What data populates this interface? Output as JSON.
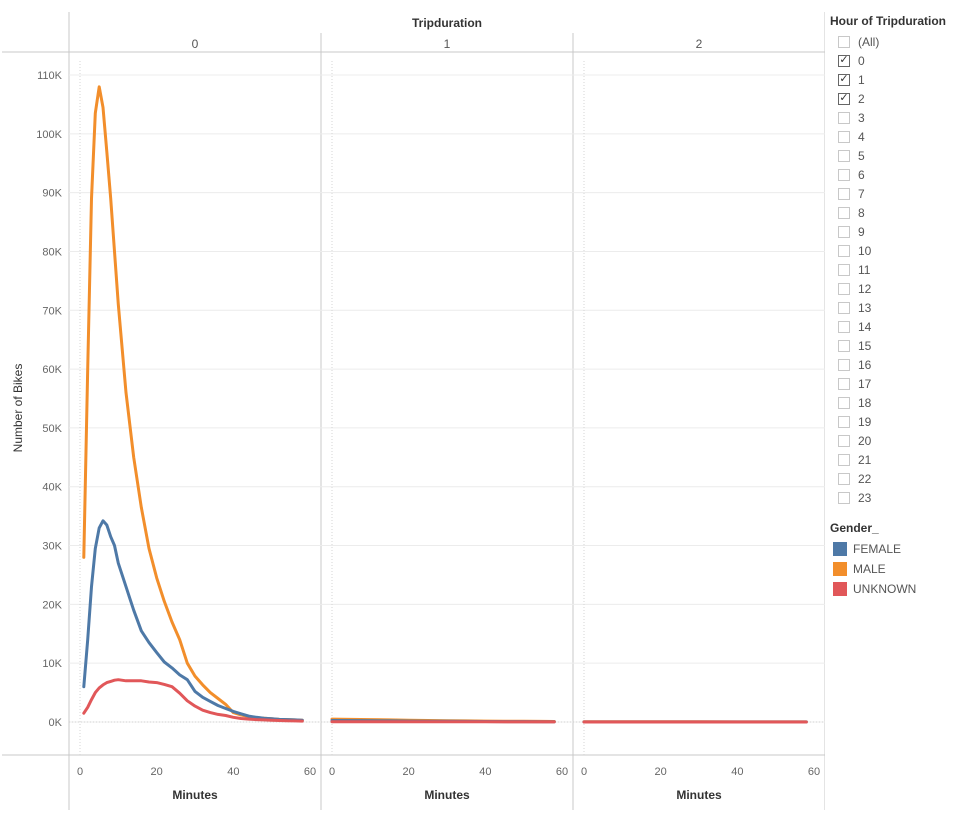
{
  "chart_data": {
    "type": "line",
    "title": "Tripduration",
    "panels": [
      "0",
      "1",
      "2"
    ],
    "xlabel": "Minutes",
    "ylabel": "Number of Bikes",
    "xlim": [
      0,
      60
    ],
    "xticks": [
      0,
      20,
      40,
      60
    ],
    "ylim": [
      0,
      113000
    ],
    "yticks": [
      0,
      10000,
      20000,
      30000,
      40000,
      50000,
      60000,
      70000,
      80000,
      90000,
      100000,
      110000
    ],
    "ytick_labels": [
      "0K",
      "10K",
      "20K",
      "30K",
      "40K",
      "50K",
      "60K",
      "70K",
      "80K",
      "90K",
      "100K",
      "110K"
    ],
    "grid": true,
    "legend": "right",
    "series": [
      {
        "name": "FEMALE",
        "color": "#4e79a7",
        "panels": [
          {
            "x": [
              1,
              2,
              3,
              4,
              5,
              6,
              7,
              8,
              9,
              10,
              12,
              14,
              16,
              18,
              20,
              22,
              24,
              26,
              28,
              30,
              32,
              34,
              36,
              38,
              40,
              42,
              44,
              46,
              48,
              50,
              52,
              54,
              56,
              58
            ],
            "y": [
              6000,
              14000,
              23000,
              29500,
              33000,
              34200,
              33500,
              31500,
              30000,
              27000,
              23000,
              19000,
              15500,
              13500,
              11800,
              10200,
              9200,
              8000,
              7200,
              5200,
              4200,
              3500,
              2800,
              2300,
              1800,
              1400,
              1000,
              800,
              650,
              550,
              450,
              400,
              350,
              300
            ]
          },
          {
            "x": [
              0,
              5,
              10,
              15,
              20,
              25,
              30,
              35,
              40,
              45,
              50,
              55,
              58
            ],
            "y": [
              250,
              230,
              200,
              180,
              160,
              140,
              120,
              100,
              80,
              70,
              60,
              50,
              50
            ]
          },
          {
            "x": [
              0,
              10,
              20,
              30,
              40,
              50,
              58
            ],
            "y": [
              20,
              18,
              16,
              14,
              12,
              10,
              10
            ]
          }
        ]
      },
      {
        "name": "MALE",
        "color": "#f28e2b",
        "panels": [
          {
            "x": [
              1,
              2,
              3,
              4,
              5,
              6,
              7,
              8,
              9,
              10,
              12,
              14,
              16,
              18,
              20,
              22,
              24,
              26,
              28,
              30,
              32,
              34,
              36,
              38,
              40,
              42,
              44,
              46,
              48,
              50,
              52,
              54,
              56,
              58
            ],
            "y": [
              28000,
              60000,
              89000,
              103500,
              108000,
              104500,
              97000,
              89000,
              80000,
              71000,
              56000,
              45000,
              36500,
              29500,
              24500,
              20500,
              17000,
              14000,
              10000,
              7800,
              6300,
              5000,
              4000,
              3000,
              1600,
              1200,
              900,
              750,
              650,
              550,
              450,
              400,
              350,
              300
            ]
          },
          {
            "x": [
              0,
              5,
              10,
              15,
              20,
              25,
              30,
              35,
              40,
              45,
              50,
              55,
              58
            ],
            "y": [
              500,
              450,
              400,
              350,
              300,
              260,
              220,
              190,
              160,
              140,
              120,
              100,
              90
            ]
          },
          {
            "x": [
              0,
              10,
              20,
              30,
              40,
              50,
              58
            ],
            "y": [
              40,
              36,
              32,
              28,
              24,
              20,
              20
            ]
          }
        ]
      },
      {
        "name": "UNKNOWN",
        "color": "#e15759",
        "panels": [
          {
            "x": [
              1,
              2,
              3,
              4,
              5,
              6,
              7,
              8,
              9,
              10,
              12,
              14,
              16,
              18,
              20,
              22,
              24,
              26,
              28,
              30,
              32,
              34,
              36,
              38,
              40,
              42,
              44,
              46,
              48,
              50,
              52,
              54,
              56,
              58
            ],
            "y": [
              1500,
              2500,
              3800,
              5000,
              5800,
              6300,
              6700,
              6900,
              7100,
              7200,
              7000,
              7000,
              7000,
              6800,
              6700,
              6400,
              6000,
              4900,
              3600,
              2700,
              2000,
              1600,
              1300,
              1100,
              800,
              600,
              500,
              400,
              350,
              300,
              250,
              200,
              180,
              150
            ]
          },
          {
            "x": [
              0,
              10,
              20,
              30,
              40,
              50,
              58
            ],
            "y": [
              50,
              45,
              40,
              35,
              30,
              25,
              20
            ]
          },
          {
            "x": [
              0,
              10,
              20,
              30,
              40,
              50,
              58
            ],
            "y": [
              5,
              5,
              5,
              5,
              5,
              5,
              5
            ]
          }
        ]
      }
    ]
  },
  "filter": {
    "title": "Hour of Tripduration",
    "items": [
      {
        "label": "(All)",
        "checked": false
      },
      {
        "label": "0",
        "checked": true
      },
      {
        "label": "1",
        "checked": true
      },
      {
        "label": "2",
        "checked": true
      },
      {
        "label": "3",
        "checked": false
      },
      {
        "label": "4",
        "checked": false
      },
      {
        "label": "5",
        "checked": false
      },
      {
        "label": "6",
        "checked": false
      },
      {
        "label": "7",
        "checked": false
      },
      {
        "label": "8",
        "checked": false
      },
      {
        "label": "9",
        "checked": false
      },
      {
        "label": "10",
        "checked": false
      },
      {
        "label": "11",
        "checked": false
      },
      {
        "label": "12",
        "checked": false
      },
      {
        "label": "13",
        "checked": false
      },
      {
        "label": "14",
        "checked": false
      },
      {
        "label": "15",
        "checked": false
      },
      {
        "label": "16",
        "checked": false
      },
      {
        "label": "17",
        "checked": false
      },
      {
        "label": "18",
        "checked": false
      },
      {
        "label": "19",
        "checked": false
      },
      {
        "label": "20",
        "checked": false
      },
      {
        "label": "21",
        "checked": false
      },
      {
        "label": "22",
        "checked": false
      },
      {
        "label": "23",
        "checked": false
      }
    ]
  },
  "legend": {
    "title": "Gender_",
    "items": [
      {
        "label": "FEMALE",
        "color": "#4e79a7"
      },
      {
        "label": "MALE",
        "color": "#f28e2b"
      },
      {
        "label": "UNKNOWN",
        "color": "#e15759"
      }
    ]
  }
}
